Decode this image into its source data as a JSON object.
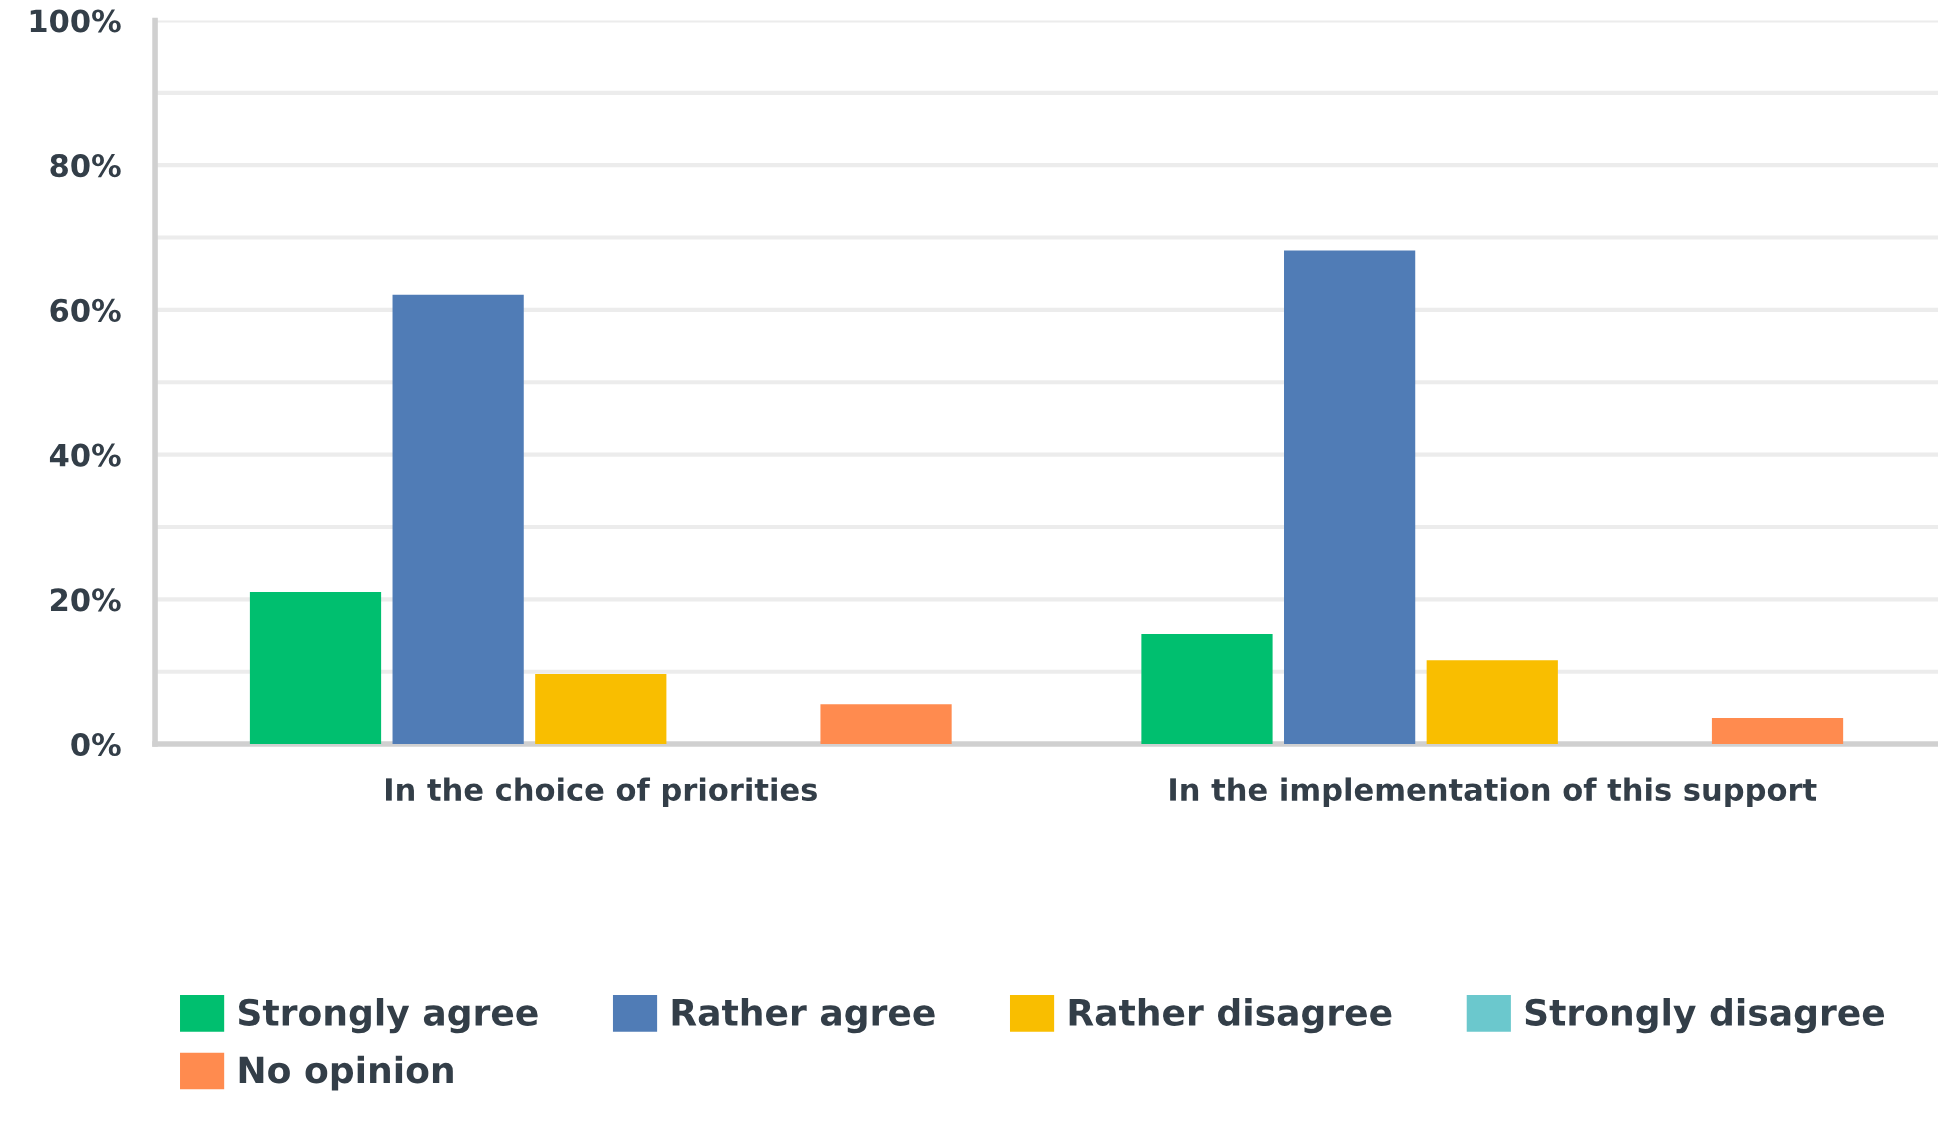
{
  "chart_data": {
    "type": "bar",
    "categories": [
      "In the choice of priorities",
      "In the implementation of this support"
    ],
    "series": [
      {
        "name": "Strongly agree",
        "color": "#00bf6f",
        "values": [
          21.0,
          15.2
        ]
      },
      {
        "name": "Rather agree",
        "color": "#507cb6",
        "values": [
          62.1,
          68.2
        ]
      },
      {
        "name": "Rather disagree",
        "color": "#f9be00",
        "values": [
          9.7,
          11.6
        ]
      },
      {
        "name": "Strongly disagree",
        "color": "#6bc8cd",
        "values": [
          0,
          0
        ]
      },
      {
        "name": "No opinion",
        "color": "#ff8b4f",
        "values": [
          5.5,
          3.6
        ]
      }
    ],
    "ylim": [
      0,
      100
    ],
    "yticks": [
      {
        "value": 0,
        "label": "0%"
      },
      {
        "value": 10,
        "label": null
      },
      {
        "value": 20,
        "label": "20%"
      },
      {
        "value": 30,
        "label": null
      },
      {
        "value": 40,
        "label": "40%"
      },
      {
        "value": 50,
        "label": null
      },
      {
        "value": 60,
        "label": "60%"
      },
      {
        "value": 70,
        "label": null
      },
      {
        "value": 80,
        "label": "80%"
      },
      {
        "value": 90,
        "label": null
      },
      {
        "value": 100,
        "label": "100%"
      }
    ],
    "grid": "y",
    "legend": "bottom"
  }
}
